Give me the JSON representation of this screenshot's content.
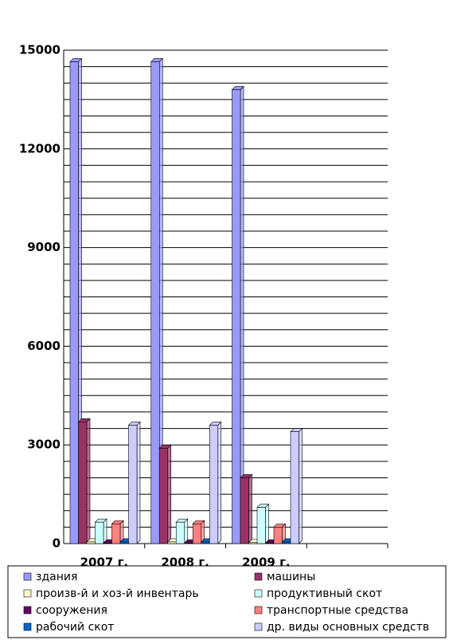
{
  "chart_data": {
    "type": "bar",
    "categories": [
      "2007 г.",
      "2008 г.",
      "2009 г.",
      null
    ],
    "series": [
      {
        "name": "здания",
        "color": "#9999ff",
        "values": [
          14650,
          14650,
          13800,
          null
        ]
      },
      {
        "name": "машины",
        "color": "#993366",
        "values": [
          3700,
          2900,
          2000,
          null
        ]
      },
      {
        "name": "произв-й и хоз-й инвентарь",
        "color": "#ffffcc",
        "values": [
          50,
          50,
          30,
          null
        ]
      },
      {
        "name": "продуктивный  скот",
        "color": "#ccffff",
        "values": [
          650,
          650,
          1100,
          null
        ]
      },
      {
        "name": "сооружения",
        "color": "#660066",
        "values": [
          20,
          20,
          20,
          null
        ]
      },
      {
        "name": "транспортные средства",
        "color": "#ff8080",
        "values": [
          600,
          600,
          500,
          null
        ]
      },
      {
        "name": "рабочий скот",
        "color": "#0066cc",
        "values": [
          50,
          50,
          50,
          null
        ]
      },
      {
        "name": "др. виды основных средств",
        "color": "#ccccff",
        "values": [
          3600,
          3600,
          3400,
          null
        ]
      }
    ],
    "ylim": [
      0,
      15000
    ],
    "yticks": [
      0,
      3000,
      6000,
      9000,
      12000,
      15000
    ],
    "y_minor_ticks": [
      500,
      1000,
      1500,
      2000,
      2500,
      3500,
      4000,
      4500,
      5000,
      5500,
      6500,
      7000,
      7500,
      8000,
      8500,
      9500,
      10000,
      10500,
      11000,
      11500,
      12500,
      13000,
      13500,
      14000,
      14500
    ],
    "grid": true,
    "legend": "bottom"
  }
}
